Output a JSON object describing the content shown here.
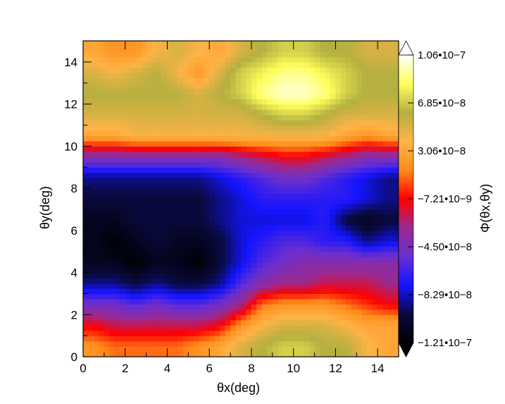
{
  "chart_data": {
    "type": "heatmap",
    "title": "",
    "xlabel": "θx(deg)",
    "ylabel": "θy(deg)",
    "colorbar_label": "Φ(θx,θy)",
    "xlim": [
      0,
      15
    ],
    "ylim": [
      0,
      15
    ],
    "x_ticks": [
      "0",
      "2",
      "4",
      "6",
      "8",
      "10",
      "12",
      "14"
    ],
    "y_ticks": [
      "0",
      "2",
      "4",
      "6",
      "8",
      "10",
      "12",
      "14"
    ],
    "zlim": [
      -1.21e-07,
      1.06e-07
    ],
    "colorbar_ticks": [
      "1.06•10−7",
      "6.85•10−8",
      "3.06•10−8",
      "−7.21•10−9",
      "−4.50•10−8",
      "−8.29•10−8",
      "−1.21•10−7"
    ],
    "colormap": [
      "#000000",
      "#0a0a40",
      "#1414ff",
      "#6a2fd0",
      "#9a2a90",
      "#ff0000",
      "#ff8c1a",
      "#ffb347",
      "#b4b040",
      "#ffff5a",
      "#ffffff"
    ],
    "grid": false,
    "colorbar_position": "right",
    "z_values_x10^-8": {
      "x": [
        0.5,
        1.5,
        2.5,
        3.5,
        4.5,
        5.5,
        6.5,
        7.5,
        8.5,
        9.5,
        10.5,
        11.5,
        12.5,
        13.5,
        14.5
      ],
      "y": [
        14.5,
        13.5,
        12.5,
        11.5,
        10.5,
        9.5,
        8.5,
        7.5,
        6.5,
        5.5,
        4.5,
        3.5,
        2.5,
        1.5,
        0.5
      ],
      "z": [
        [
          3,
          2,
          2,
          4,
          5,
          4,
          3,
          5,
          6,
          7,
          7,
          6,
          6,
          5,
          5
        ],
        [
          5,
          4,
          5,
          6,
          4,
          2,
          5,
          7,
          8,
          9,
          9,
          8,
          7,
          6,
          6
        ],
        [
          6,
          6,
          6,
          6,
          6,
          5,
          6,
          7,
          9,
          10,
          10,
          9,
          7,
          6,
          6
        ],
        [
          5,
          5,
          5,
          5,
          5,
          5,
          5,
          5,
          6,
          7,
          7,
          6,
          5,
          5,
          5
        ],
        [
          3,
          3,
          4,
          4,
          4,
          4,
          4,
          4,
          4,
          4,
          4,
          4,
          3,
          2,
          3
        ],
        [
          -4,
          -4,
          -4,
          -4,
          -4,
          -4,
          -4,
          -3,
          -2,
          -1,
          -1,
          -2,
          -3,
          -4,
          -4
        ],
        [
          -9,
          -9,
          -9,
          -9,
          -9,
          -9,
          -8,
          -7,
          -6,
          -5,
          -5,
          -6,
          -7,
          -8,
          -9
        ],
        [
          -10,
          -10,
          -10,
          -10,
          -10,
          -10,
          -9,
          -8,
          -7,
          -7,
          -7,
          -7,
          -7,
          -8,
          -9
        ],
        [
          -11,
          -11,
          -10,
          -10,
          -10,
          -10,
          -9,
          -8,
          -8,
          -8,
          -8,
          -7,
          -10,
          -11,
          -10
        ],
        [
          -11,
          -12,
          -11,
          -10,
          -11,
          -11,
          -10,
          -8,
          -7,
          -6,
          -6,
          -7,
          -7,
          -9,
          -8
        ],
        [
          -11,
          -11,
          -12,
          -11,
          -11,
          -12,
          -10,
          -8,
          -6,
          -5,
          -4,
          -4,
          -4,
          -4,
          -4
        ],
        [
          -9,
          -9,
          -10,
          -9,
          -10,
          -10,
          -9,
          -6,
          -4,
          -3,
          -3,
          -2,
          -2,
          -2,
          -3
        ],
        [
          -5,
          -5,
          -6,
          -5,
          -6,
          -6,
          -5,
          -3,
          1,
          2,
          2,
          2,
          1,
          0,
          -1
        ],
        [
          -1,
          -2,
          -2,
          -2,
          -2,
          -2,
          -1,
          2,
          4,
          5,
          5,
          5,
          4,
          3,
          3
        ],
        [
          2,
          1,
          1,
          1,
          1,
          2,
          3,
          5,
          6,
          7,
          7,
          6,
          6,
          4,
          3
        ]
      ]
    }
  }
}
